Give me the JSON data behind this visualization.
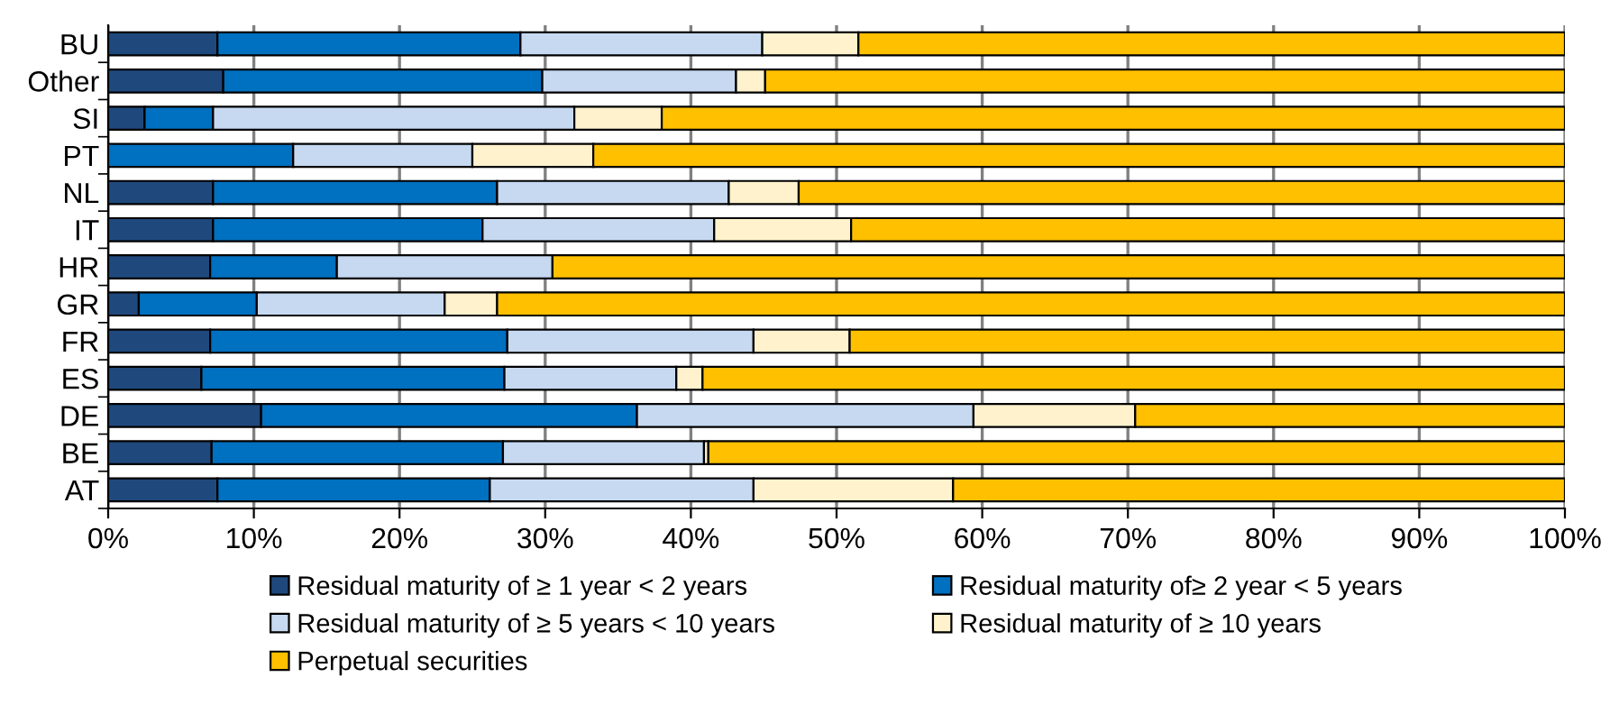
{
  "chart_data": {
    "type": "bar",
    "orientation": "horizontal",
    "stacked": true,
    "categories": [
      "BU",
      "Other",
      "SI",
      "PT",
      "NL",
      "IT",
      "HR",
      "GR",
      "FR",
      "ES",
      "DE",
      "BE",
      "AT"
    ],
    "series": [
      {
        "name": "Residual maturity of ≥ 1 year < 2 years",
        "color": "#1f497d",
        "values": [
          7.5,
          7.9,
          2.5,
          0,
          7.2,
          7.2,
          7.0,
          2.1,
          7.0,
          6.4,
          10.5,
          7.1,
          7.5
        ]
      },
      {
        "name": "Residual maturity of≥ 2 year < 5 years",
        "color": "#0070c0",
        "values": [
          20.8,
          21.9,
          4.7,
          12.7,
          19.5,
          18.5,
          8.7,
          8.1,
          20.4,
          20.8,
          25.8,
          20.0,
          18.7
        ]
      },
      {
        "name": "Residual maturity of ≥ 5 years < 10 years",
        "color": "#c6d9f1",
        "values": [
          16.6,
          13.3,
          24.8,
          12.3,
          15.9,
          15.9,
          14.8,
          12.9,
          16.9,
          11.8,
          23.1,
          13.8,
          18.1
        ]
      },
      {
        "name": "Residual maturity of ≥ 10 years",
        "color": "#fff2cc",
        "values": [
          6.6,
          2.0,
          6.0,
          8.3,
          4.8,
          9.4,
          0,
          3.6,
          6.6,
          1.8,
          11.1,
          0.3,
          13.7
        ]
      },
      {
        "name": "Perpetual securities",
        "color": "#ffc000",
        "values": [
          48.5,
          54.9,
          62.0,
          66.7,
          52.6,
          49.0,
          69.5,
          73.3,
          49.1,
          59.2,
          29.5,
          58.8,
          42.0
        ]
      }
    ],
    "xlim": [
      0,
      100
    ],
    "xticks": [
      {
        "value": 0,
        "label": "0%"
      },
      {
        "value": 10,
        "label": "10%"
      },
      {
        "value": 20,
        "label": "20%"
      },
      {
        "value": 30,
        "label": "30%"
      },
      {
        "value": 40,
        "label": "40%"
      },
      {
        "value": 50,
        "label": "50%"
      },
      {
        "value": 60,
        "label": "60%"
      },
      {
        "value": 70,
        "label": "70%"
      },
      {
        "value": 80,
        "label": "80%"
      },
      {
        "value": 90,
        "label": "90%"
      },
      {
        "value": 100,
        "label": "100%"
      }
    ],
    "grid": "x",
    "legend": "bottom"
  }
}
